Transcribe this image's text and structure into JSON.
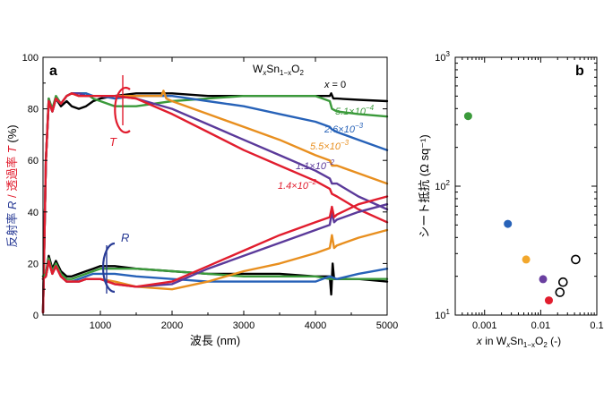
{
  "chart_data": [
    {
      "type": "line",
      "panel_label": "a",
      "ylabel_parts": [
        "反射率 ",
        "R",
        " / 透過率 ",
        "T",
        " (%)"
      ],
      "ylabel_colors": [
        "#2a3c96",
        "#2a3c96",
        "#e11d2e",
        "#e11d2e",
        "#000000"
      ],
      "xlabel": "波長 (nm)",
      "xlim": [
        200,
        5000
      ],
      "ylim": [
        0,
        100
      ],
      "x_ticks": [
        1000,
        2000,
        3000,
        4000,
        5000
      ],
      "x_tick_labels": [
        "1000",
        "2000",
        "3000",
        "4000",
        "5000"
      ],
      "y_ticks": [
        0,
        20,
        40,
        60,
        80,
        100
      ],
      "y_tick_labels": [
        "0",
        "20",
        "40",
        "60",
        "80",
        "100"
      ],
      "grid": false,
      "T_label": "T",
      "R_label": "R",
      "formula_parts": [
        "W",
        "x",
        "Sn",
        "1−x",
        "O",
        "2"
      ],
      "legend": [
        {
          "base": "x",
          "sup": "",
          "eq": " = 0",
          "color": "#000000"
        },
        {
          "base": "5.1×10",
          "sup": "−4",
          "eq": "",
          "color": "#3b9a3b"
        },
        {
          "base": "2.6×10",
          "sup": "−3",
          "eq": "",
          "color": "#2762b8"
        },
        {
          "base": "5.5×10",
          "sup": "−3",
          "eq": "",
          "color": "#e88f1f"
        },
        {
          "base": "1.1×10",
          "sup": "−2",
          "eq": "",
          "color": "#5b3a9a"
        },
        {
          "base": "1.4×10",
          "sup": "−2",
          "eq": "",
          "color": "#e11d2e"
        }
      ],
      "series": [
        {
          "color": "#000000",
          "kind": "T",
          "x": [
            200,
            240,
            280,
            330,
            380,
            450,
            530,
            600,
            700,
            800,
            900,
            1000,
            1200,
            1500,
            2000,
            2500,
            3000,
            3500,
            4000,
            4200,
            4220,
            4250,
            4300,
            4600,
            5000
          ],
          "y": [
            1,
            60,
            84,
            79,
            84,
            81,
            83,
            81,
            80,
            81,
            83,
            84,
            85,
            86,
            86,
            85,
            85,
            85,
            85,
            85,
            86,
            84,
            84,
            83.5,
            83
          ]
        },
        {
          "color": "#3b9a3b",
          "kind": "T",
          "x": [
            200,
            240,
            280,
            330,
            380,
            450,
            530,
            600,
            700,
            800,
            900,
            1000,
            1200,
            1500,
            2000,
            2500,
            3000,
            3500,
            4000,
            4200,
            4230,
            4300,
            4600,
            5000
          ],
          "y": [
            1,
            60,
            84,
            80,
            85,
            82,
            85,
            86,
            86,
            86,
            84,
            83,
            81,
            81,
            83,
            84,
            85,
            85,
            85,
            83,
            80,
            79,
            78,
            77
          ]
        },
        {
          "color": "#2762b8",
          "kind": "T",
          "x": [
            200,
            240,
            280,
            330,
            380,
            450,
            530,
            600,
            700,
            800,
            900,
            1000,
            1200,
            1500,
            2000,
            2500,
            3000,
            3500,
            4000,
            4200,
            4230,
            4300,
            4600,
            5000
          ],
          "y": [
            1,
            60,
            83,
            79,
            84,
            82,
            85,
            86,
            86,
            86,
            85,
            85,
            84,
            85,
            85,
            83,
            81,
            78,
            75,
            73,
            72,
            71,
            68,
            64
          ]
        },
        {
          "color": "#e88f1f",
          "kind": "T",
          "x": [
            200,
            240,
            280,
            330,
            380,
            450,
            530,
            600,
            700,
            800,
            900,
            1000,
            1200,
            1500,
            1850,
            1880,
            1920,
            2000,
            2500,
            3000,
            3500,
            4000,
            4200,
            4230,
            4300,
            4600,
            5000
          ],
          "y": [
            1,
            60,
            83,
            79,
            84,
            82,
            85,
            86,
            85,
            85,
            85,
            85,
            85,
            85,
            85,
            87,
            84,
            83,
            78,
            73,
            68,
            62,
            60,
            58,
            58,
            55,
            51
          ]
        },
        {
          "color": "#5b3a9a",
          "kind": "T",
          "x": [
            200,
            240,
            280,
            330,
            380,
            450,
            530,
            600,
            700,
            800,
            900,
            1000,
            1200,
            1500,
            2000,
            2500,
            3000,
            3500,
            4000,
            4200,
            4230,
            4300,
            4600,
            5000
          ],
          "y": [
            1,
            60,
            83,
            79,
            84,
            82,
            85,
            86,
            86,
            85,
            85,
            85,
            85,
            84,
            80,
            74,
            68,
            62,
            56,
            53,
            51,
            51,
            46,
            41
          ]
        },
        {
          "color": "#e11d2e",
          "kind": "T",
          "x": [
            200,
            240,
            280,
            330,
            380,
            450,
            530,
            600,
            700,
            800,
            900,
            1000,
            1200,
            1500,
            2000,
            2500,
            3000,
            3500,
            4000,
            4200,
            4230,
            4300,
            4600,
            5000
          ],
          "y": [
            1,
            60,
            83,
            79,
            84,
            82,
            85,
            86,
            85,
            85,
            85,
            85,
            85,
            84,
            78,
            71,
            64,
            58,
            52,
            49,
            47,
            46,
            41,
            36
          ]
        },
        {
          "color": "#000000",
          "kind": "R",
          "x": [
            200,
            240,
            280,
            330,
            380,
            450,
            530,
            600,
            700,
            800,
            900,
            1000,
            1200,
            1500,
            2000,
            2500,
            3000,
            3500,
            4000,
            4200,
            4220,
            4240,
            4260,
            4280,
            4300,
            4600,
            5000
          ],
          "y": [
            15,
            16,
            23,
            18,
            21,
            17,
            15,
            15,
            16,
            17,
            18,
            19,
            19,
            18,
            17,
            16,
            16,
            16,
            15,
            15,
            8,
            20,
            14,
            14,
            14,
            14,
            13
          ]
        },
        {
          "color": "#3b9a3b",
          "kind": "R",
          "x": [
            200,
            240,
            280,
            330,
            380,
            450,
            530,
            600,
            700,
            800,
            900,
            1000,
            1200,
            1500,
            2000,
            2500,
            3000,
            3500,
            4000,
            4200,
            4300,
            4600,
            5000
          ],
          "y": [
            15,
            16,
            22,
            17,
            20,
            16,
            14,
            14,
            15,
            16,
            17,
            18,
            18,
            18,
            17,
            16,
            15,
            15,
            15,
            14,
            14,
            14,
            14
          ]
        },
        {
          "color": "#2762b8",
          "kind": "R",
          "x": [
            200,
            240,
            280,
            330,
            380,
            450,
            530,
            600,
            700,
            800,
            900,
            1000,
            1200,
            1500,
            2000,
            2500,
            3000,
            3500,
            4000,
            4200,
            4300,
            4600,
            5000
          ],
          "y": [
            14,
            15,
            21,
            16,
            19,
            15,
            13,
            13,
            14,
            15,
            16,
            16,
            16,
            15,
            14,
            13,
            13,
            13,
            13,
            15,
            14,
            16,
            18
          ]
        },
        {
          "color": "#e88f1f",
          "kind": "R",
          "x": [
            200,
            240,
            280,
            330,
            380,
            450,
            530,
            600,
            700,
            800,
            900,
            1000,
            1200,
            1500,
            2000,
            2500,
            3000,
            3500,
            4000,
            4200,
            4230,
            4260,
            4300,
            4600,
            5000
          ],
          "y": [
            14,
            15,
            21,
            16,
            19,
            15,
            13,
            13,
            13,
            14,
            14,
            14,
            13,
            11,
            10,
            13,
            17,
            20,
            24,
            26,
            31,
            26,
            27,
            30,
            33
          ]
        },
        {
          "color": "#5b3a9a",
          "kind": "R",
          "x": [
            200,
            240,
            280,
            330,
            380,
            450,
            530,
            600,
            700,
            800,
            900,
            1000,
            1200,
            1500,
            2000,
            2500,
            3000,
            3500,
            4000,
            4200,
            4230,
            4260,
            4300,
            4600,
            5000
          ],
          "y": [
            14,
            15,
            21,
            16,
            19,
            15,
            13,
            13,
            13,
            14,
            14,
            14,
            12,
            11,
            12,
            18,
            23,
            28,
            33,
            35,
            40,
            36,
            37,
            40,
            43
          ]
        },
        {
          "color": "#e11d2e",
          "kind": "R",
          "x": [
            200,
            240,
            280,
            330,
            380,
            450,
            530,
            600,
            700,
            800,
            900,
            1000,
            1200,
            1500,
            2000,
            2500,
            3000,
            3500,
            4000,
            4200,
            4230,
            4260,
            4300,
            4600,
            5000
          ],
          "y": [
            14,
            15,
            21,
            16,
            19,
            15,
            13,
            13,
            13,
            14,
            14,
            14,
            12,
            11,
            13,
            19,
            25,
            31,
            36,
            38,
            42,
            38,
            39,
            43,
            46
          ]
        }
      ]
    },
    {
      "type": "scatter",
      "panel_label": "b",
      "ylabel": "シート抵抗 (Ω sq⁻¹)",
      "xlabel_parts": [
        "x",
        " in W",
        "x",
        "Sn",
        "1−x",
        "O",
        "2",
        " (-)"
      ],
      "xscale": "log",
      "yscale": "log",
      "xlim": [
        0.0003,
        0.1
      ],
      "ylim": [
        10,
        1000
      ],
      "x_ticks": [
        0.001,
        0.01,
        0.1
      ],
      "x_tick_labels": [
        "0.001",
        "0.01",
        "0.1"
      ],
      "y_tick_labels": [
        {
          "value": 10,
          "base": "10",
          "exp": "1"
        },
        {
          "value": 100,
          "base": "10",
          "exp": "2"
        },
        {
          "value": 1000,
          "base": "10",
          "exp": "3"
        }
      ],
      "grid": false,
      "points": [
        {
          "x": 0.00051,
          "y": 350,
          "color": "#3b9a3b",
          "filled": true
        },
        {
          "x": 0.0026,
          "y": 51,
          "color": "#2762b8",
          "filled": true
        },
        {
          "x": 0.0055,
          "y": 27,
          "color": "#f2a72c",
          "filled": true
        },
        {
          "x": 0.011,
          "y": 19,
          "color": "#6a3fa0",
          "filled": true
        },
        {
          "x": 0.014,
          "y": 13,
          "color": "#e11d2e",
          "filled": true
        },
        {
          "x": 0.022,
          "y": 15,
          "color": "#000000",
          "filled": false
        },
        {
          "x": 0.025,
          "y": 18,
          "color": "#000000",
          "filled": false
        },
        {
          "x": 0.042,
          "y": 27,
          "color": "#000000",
          "filled": false
        }
      ]
    }
  ]
}
